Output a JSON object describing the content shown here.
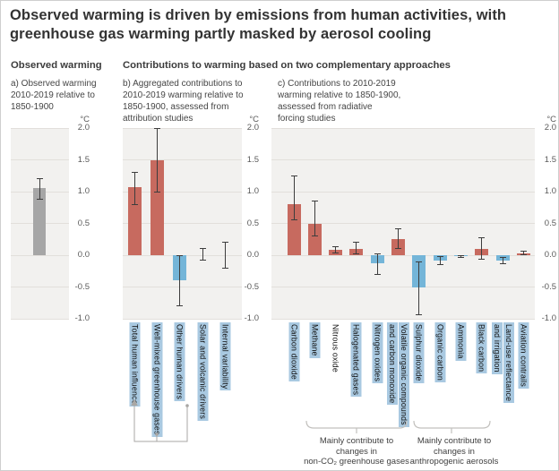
{
  "title": "Observed warming is driven by emissions from human activities, with\ngreenhouse gas warming partly masked by aerosol cooling",
  "sections": {
    "left": "Observed warming",
    "right": "Contributions to warming based on two complementary approaches"
  },
  "axis": {
    "unit": "°C",
    "ticks": [
      2.0,
      1.5,
      1.0,
      0.5,
      0.0,
      -0.5,
      -1.0
    ],
    "ylim": [
      -1.0,
      2.0
    ]
  },
  "colors": {
    "warming": "#c76a5f",
    "cooling": "#74b5d8",
    "observed": "#a6a6a6",
    "label_highlight": "#a9c9e1",
    "panel_bg": "#f2f1ef",
    "grid": "#e2dfdb"
  },
  "chart_data": [
    {
      "id": "a",
      "type": "bar",
      "caption": "a) Observed warming\n2010-2019 relative to\n1850-1900",
      "ylabel": "°C",
      "ylim": [
        -1.0,
        2.0
      ],
      "grid": true,
      "bars": [
        {
          "label": "",
          "value": 1.06,
          "err": [
            0.88,
            1.21
          ],
          "highlight": false
        }
      ]
    },
    {
      "id": "b",
      "type": "bar",
      "caption": "b) Aggregated contributions to\n2010-2019 warming relative to\n1850-1900, assessed from\nattribution studies",
      "ylabel": "°C",
      "ylim": [
        -1.0,
        2.0
      ],
      "grid": true,
      "bars": [
        {
          "label": "Total human influence",
          "value": 1.07,
          "err": [
            0.8,
            1.3
          ],
          "highlight": true
        },
        {
          "label": "Well-mixed greenhouse gases",
          "value": 1.5,
          "err": [
            1.0,
            2.0
          ],
          "highlight": true
        },
        {
          "label": "Other human drivers",
          "value": -0.4,
          "err": [
            -0.8,
            0.0
          ],
          "highlight": true
        },
        {
          "label": "Solar and volcanic drivers",
          "value": 0.0,
          "err": [
            -0.08,
            0.1
          ],
          "highlight": true
        },
        {
          "label": "Internal variability",
          "value": 0.0,
          "err": [
            -0.2,
            0.2
          ],
          "highlight": true
        }
      ]
    },
    {
      "id": "c",
      "type": "bar",
      "caption": "c) Contributions to 2010-2019\nwarming relative to 1850-1900,\nassessed from radiative\nforcing studies",
      "ylabel": "°C",
      "ylim": [
        -1.0,
        2.0
      ],
      "grid": true,
      "bars": [
        {
          "label": "Carbon dioxide",
          "value": 0.8,
          "err": [
            0.55,
            1.25
          ],
          "highlight": true
        },
        {
          "label": "Methane",
          "value": 0.5,
          "err": [
            0.3,
            0.85
          ],
          "highlight": true
        },
        {
          "label": "Nitrous oxide",
          "value": 0.09,
          "err": [
            0.04,
            0.14
          ],
          "highlight": false
        },
        {
          "label": "Halogenated gases",
          "value": 0.1,
          "err": [
            0.02,
            0.2
          ],
          "highlight": true
        },
        {
          "label": "Nitrogen oxides",
          "value": -0.13,
          "err": [
            -0.3,
            0.02
          ],
          "highlight": true
        },
        {
          "label": "Volatile organic compounds\nand carbon monoxide",
          "value": 0.25,
          "err": [
            0.1,
            0.42
          ],
          "highlight": true
        },
        {
          "label": "Sulphur dioxide",
          "value": -0.5,
          "err": [
            -0.93,
            -0.1
          ],
          "highlight": true
        },
        {
          "label": "Organic carbon",
          "value": -0.08,
          "err": [
            -0.15,
            -0.02
          ],
          "highlight": true
        },
        {
          "label": "Ammonia",
          "value": -0.02,
          "err": [
            -0.04,
            -0.01
          ],
          "highlight": true
        },
        {
          "label": "Black carbon",
          "value": 0.1,
          "err": [
            -0.07,
            0.28
          ],
          "highlight": true
        },
        {
          "label": "Land-use reflectance\nand irrigation",
          "value": -0.08,
          "err": [
            -0.13,
            -0.03
          ],
          "highlight": true
        },
        {
          "label": "Aviation contrails",
          "value": 0.03,
          "err": [
            0.01,
            0.06
          ],
          "highlight": true
        }
      ]
    }
  ],
  "annotations": {
    "braces": [
      {
        "text": "Mainly contribute to\nchanges in\nnon-CO₂ greenhouse gases",
        "span": [
          "Methane",
          "Volatile organic compounds and carbon monoxide"
        ]
      },
      {
        "text": "Mainly contribute to\nchanges in\nanthropogenic aerosols",
        "span": [
          "Sulphur dioxide",
          "Black carbon"
        ]
      }
    ]
  }
}
